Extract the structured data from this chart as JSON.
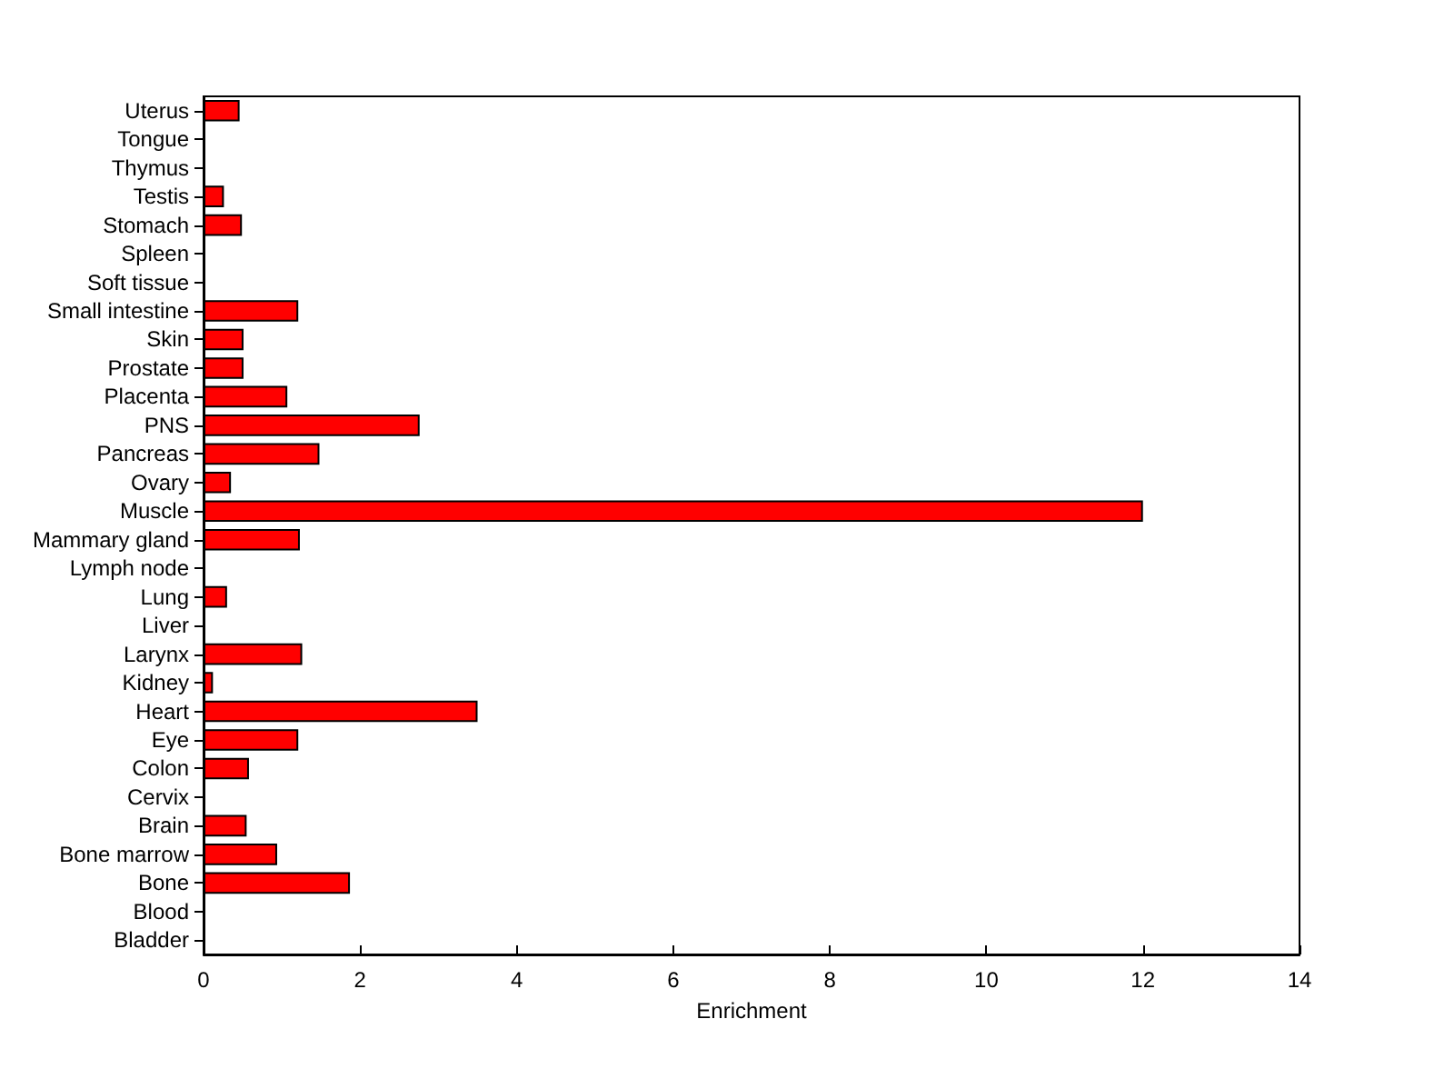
{
  "chart_data": {
    "type": "bar",
    "orientation": "horizontal",
    "xlabel": "Enrichment",
    "categories": [
      "Uterus",
      "Tongue",
      "Thymus",
      "Testis",
      "Stomach",
      "Spleen",
      "Soft tissue",
      "Small intestine",
      "Skin",
      "Prostate",
      "Placenta",
      "PNS",
      "Pancreas",
      "Ovary",
      "Muscle",
      "Mammary gland",
      "Lymph node",
      "Lung",
      "Liver",
      "Larynx",
      "Kidney",
      "Heart",
      "Eye",
      "Colon",
      "Cervix",
      "Brain",
      "Bone marrow",
      "Bone",
      "Blood",
      "Bladder"
    ],
    "values": [
      0.46,
      0,
      0,
      0.26,
      0.49,
      0,
      0,
      1.21,
      0.51,
      0.51,
      1.07,
      2.76,
      1.48,
      0.35,
      12.0,
      1.23,
      0,
      0.3,
      0,
      1.26,
      0.12,
      3.5,
      1.21,
      0.58,
      0,
      0.55,
      0.94,
      1.87,
      0,
      0
    ],
    "color": "#ff0000",
    "xlim": [
      0,
      14
    ],
    "xticks": [
      0,
      2,
      4,
      6,
      8,
      10,
      12,
      14
    ],
    "grid": false
  }
}
